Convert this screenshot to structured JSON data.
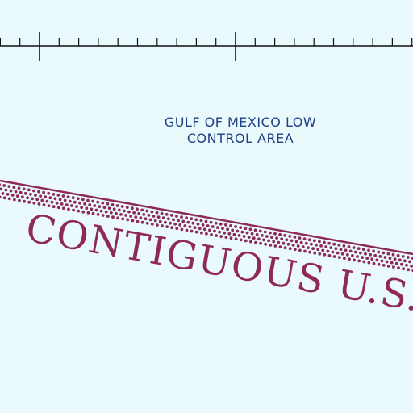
{
  "map": {
    "background_color": "#e9f9fc",
    "scale_bar": {
      "color": "#111111",
      "major_ticks": 2,
      "minor_ticks_between_major": 9
    },
    "airspace_label": {
      "line1": "GULF OF MEXICO LOW",
      "line2": "CONTROL AREA",
      "color": "#1f3f86"
    },
    "boundary": {
      "name": "ADIZ boundary",
      "line_color": "#8f2a57",
      "dot_color": "#8f2a57",
      "style": "solid line with dotted band"
    },
    "region_label": {
      "text": "CONTIGUOUS U.S.",
      "color": "#8f2a57"
    }
  }
}
